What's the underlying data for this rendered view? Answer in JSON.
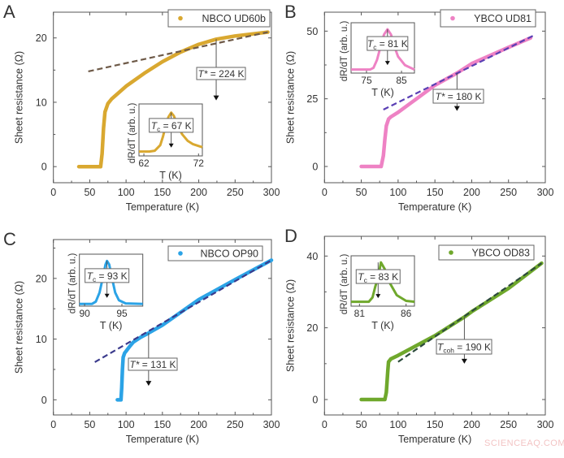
{
  "watermark": "SCIENCEAQ.COM",
  "chart_data": [
    {
      "type": "scatter",
      "panel": "A",
      "xlabel": "Temperature (K)",
      "ylabel": "Sheet resistance (Ω)",
      "xlim": [
        0,
        300
      ],
      "ylim": [
        -2.5,
        24
      ],
      "xticks": [
        0,
        50,
        100,
        150,
        200,
        250,
        300
      ],
      "yticks": [
        0,
        10,
        20
      ],
      "legend": "NBCO UD60b",
      "legend_position": "top-right",
      "color": "#d9a830",
      "fit_color": "#6e5a48",
      "series": {
        "name": "NBCO UD60b",
        "x": [
          35,
          50,
          65,
          67,
          69,
          71,
          75,
          80,
          100,
          125,
          150,
          175,
          200,
          224,
          250,
          295
        ],
        "y": [
          0,
          0,
          0,
          2,
          6,
          8.5,
          9.8,
          10.5,
          12.5,
          14.5,
          16.3,
          17.8,
          19,
          19.8,
          20.3,
          20.9
        ]
      },
      "fit": {
        "x": [
          48,
          295
        ],
        "y": [
          14.8,
          20.9
        ]
      },
      "marker": {
        "T": 224,
        "from": 19.8,
        "to": 10.3,
        "symbol": "T*",
        "sub": "",
        "rest": " = 224 K"
      },
      "inset": {
        "xlabel": "T (K)",
        "ylabel": "dR/dT (arb. u.)",
        "xlim": [
          61.1,
          72.7
        ],
        "ylim": [
          0,
          1.2
        ],
        "xticks": [
          62,
          72
        ],
        "x": [
          61.1,
          63,
          64,
          65,
          65.5,
          66,
          66.5,
          67,
          67.5,
          68,
          69,
          70,
          71,
          72.7
        ],
        "y": [
          0.1,
          0.1,
          0.12,
          0.25,
          0.45,
          0.7,
          0.9,
          1,
          0.92,
          0.75,
          0.5,
          0.35,
          0.27,
          0.2
        ],
        "tc": {
          "T": 67,
          "symbol": "T",
          "sub": "c",
          "rest": " = 67 K"
        }
      }
    },
    {
      "type": "scatter",
      "panel": "B",
      "xlabel": "Temperature (K)",
      "ylabel": "Sheet resistance (Ω)",
      "xlim": [
        0,
        300
      ],
      "ylim": [
        -6,
        57
      ],
      "xticks": [
        0,
        50,
        100,
        150,
        200,
        250,
        300
      ],
      "yticks": [
        0,
        25,
        50
      ],
      "legend": "YBCO UD81",
      "legend_position": "top-right",
      "color": "#ee82c4",
      "fit_color": "#5a3fb4",
      "series": {
        "name": "YBCO UD81",
        "x": [
          50,
          77,
          80,
          82,
          84,
          87,
          90,
          100,
          125,
          150,
          180,
          200,
          250,
          280
        ],
        "y": [
          0,
          0,
          4,
          10,
          15,
          17.5,
          18.3,
          20,
          25,
          30,
          34.5,
          38,
          44,
          47.5
        ]
      },
      "fit": {
        "x": [
          80,
          285
        ],
        "y": [
          21,
          48.5
        ]
      },
      "marker": {
        "T": 180,
        "from": 34.5,
        "to": 20.5,
        "symbol": "T*",
        "sub": "",
        "rest": " = 180 K"
      },
      "inset": {
        "xlabel": "T (K)",
        "ylabel": "dR/dT (arb. u.)",
        "xlim": [
          70.6,
          88.7
        ],
        "ylim": [
          0,
          1.15
        ],
        "xticks": [
          75,
          85
        ],
        "x": [
          70.6,
          76,
          77,
          78,
          79,
          80,
          81,
          82,
          83,
          84,
          86,
          88.7
        ],
        "y": [
          0.08,
          0.08,
          0.12,
          0.3,
          0.6,
          0.88,
          1,
          0.88,
          0.6,
          0.38,
          0.18,
          0.08
        ],
        "tc": {
          "T": 81,
          "symbol": "T",
          "sub": "c",
          "rest": " = 81 K"
        }
      }
    },
    {
      "type": "scatter",
      "panel": "C",
      "xlabel": "Temperature (K)",
      "ylabel": "Sheet resistance (Ω)",
      "xlim": [
        0,
        300
      ],
      "ylim": [
        -2.5,
        26.4
      ],
      "xticks": [
        0,
        50,
        100,
        150,
        200,
        250,
        300
      ],
      "yticks": [
        0,
        10,
        20
      ],
      "legend": "NBCO OP90",
      "legend_position": "top-right",
      "color": "#2ba3e6",
      "fit_color": "#3a3a8c",
      "series": {
        "name": "NBCO OP90",
        "x": [
          88,
          93,
          94,
          95,
          96,
          98,
          100,
          105,
          110,
          120,
          131,
          150,
          200,
          250,
          300
        ],
        "y": [
          0,
          0,
          2,
          5,
          7,
          7.7,
          8,
          8.8,
          9.5,
          10.3,
          11,
          12.3,
          16.5,
          19.8,
          23
        ]
      },
      "fit": {
        "x": [
          57,
          300
        ],
        "y": [
          6.2,
          23
        ]
      },
      "marker": {
        "T": 131,
        "from": 11,
        "to": 2.3,
        "symbol": "T*",
        "sub": "",
        "rest": " = 131 K"
      },
      "inset": {
        "xlabel": "T (K)",
        "ylabel": "dR/dT (arb. u.)",
        "xlim": [
          89.3,
          97.8
        ],
        "ylim": [
          0,
          1.15
        ],
        "xticks": [
          90,
          95
        ],
        "x": [
          89.3,
          91,
          91.5,
          92,
          92.4,
          92.8,
          93,
          93.3,
          93.7,
          94.1,
          94.6,
          95.5,
          97.8
        ],
        "y": [
          0.05,
          0.05,
          0.1,
          0.3,
          0.6,
          0.92,
          1,
          0.92,
          0.6,
          0.3,
          0.13,
          0.06,
          0.05
        ],
        "tc": {
          "T": 93,
          "symbol": "T",
          "sub": "c",
          "rest": " = 93 K"
        }
      }
    },
    {
      "type": "scatter",
      "panel": "D",
      "xlabel": "Temperature (K)",
      "ylabel": "Sheet resistance (Ω)",
      "xlim": [
        0,
        300
      ],
      "ylim": [
        -4.3,
        45.5
      ],
      "xticks": [
        0,
        50,
        100,
        150,
        200,
        250,
        300
      ],
      "yticks": [
        0,
        20,
        40
      ],
      "legend": "YBCO OD83",
      "legend_position": "top-right",
      "color": "#6fa82c",
      "fit_color": "#2c4a3c",
      "series": {
        "name": "YBCO OD83",
        "x": [
          50,
          82,
          84,
          85,
          86,
          87,
          90,
          100,
          150,
          190,
          200,
          250,
          295
        ],
        "y": [
          0,
          0,
          2,
          5,
          8,
          10.5,
          11.3,
          12.3,
          17.8,
          23,
          24.5,
          31,
          38
        ]
      },
      "fit": {
        "x": [
          100,
          295
        ],
        "y": [
          10.5,
          38
        ]
      },
      "marker": {
        "T": 190,
        "from": 23,
        "to": 10,
        "symbol": "T",
        "sub": "coh",
        "rest": " = 190 K"
      },
      "inset": {
        "xlabel": "T (K)",
        "ylabel": "dR/dT (arb. u.)",
        "xlim": [
          80.1,
          86.9
        ],
        "ylim": [
          0,
          1.15
        ],
        "xticks": [
          81,
          86
        ],
        "x": [
          80.1,
          82,
          82.4,
          82.7,
          83,
          83.3,
          83.7,
          84.2,
          85,
          86,
          86.9
        ],
        "y": [
          0.1,
          0.1,
          0.2,
          0.45,
          0.65,
          1,
          0.85,
          0.55,
          0.25,
          0.12,
          0.1
        ],
        "tc": {
          "T": 83,
          "symbol": "T",
          "sub": "c",
          "rest": " = 83 K"
        }
      }
    }
  ]
}
